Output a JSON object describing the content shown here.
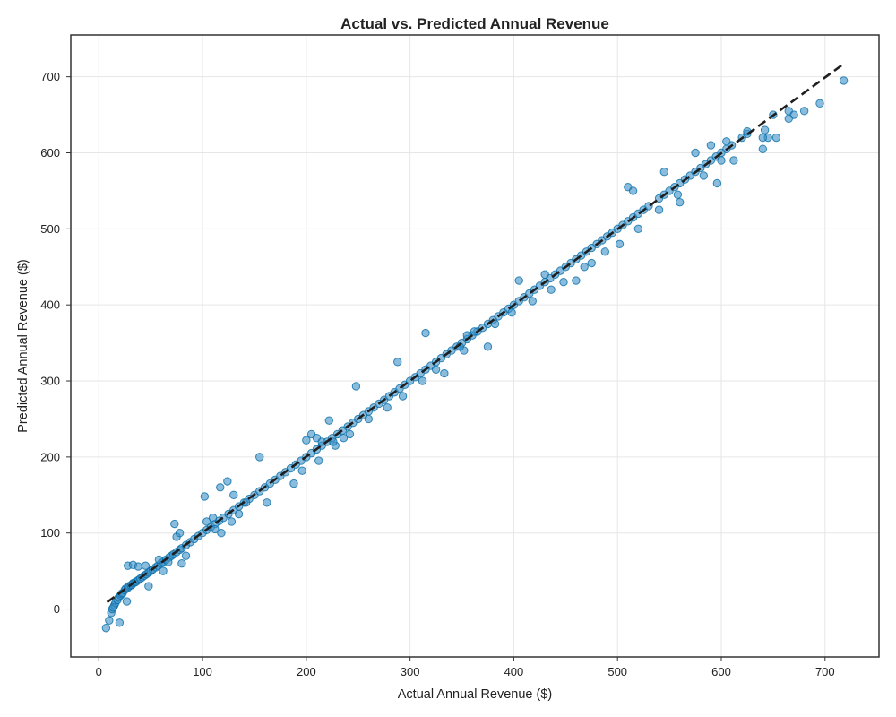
{
  "chart_data": {
    "type": "scatter",
    "title": "Actual vs. Predicted Annual Revenue",
    "xlabel": "Actual Annual Revenue ($)",
    "ylabel": "Predicted Annual Revenue ($)",
    "xlim": [
      -27,
      752
    ],
    "ylim": [
      -63,
      755
    ],
    "x_ticks": [
      0,
      100,
      200,
      300,
      400,
      500,
      600,
      700
    ],
    "y_ticks": [
      0,
      100,
      200,
      300,
      400,
      500,
      600,
      700
    ],
    "grid": true,
    "colors": {
      "points_fill": "#3a8fc7",
      "points_edge": "#0a6ea8",
      "reference_line": "#1f1f1f"
    },
    "reference_line": {
      "style": "dashed",
      "x": [
        8,
        717
      ],
      "y": [
        9,
        716
      ]
    },
    "points": {
      "x": [
        7,
        10,
        12,
        13,
        15,
        16,
        18,
        19,
        21,
        22,
        23,
        25,
        26,
        28,
        29,
        31,
        32,
        33,
        35,
        36,
        38,
        40,
        42,
        44,
        46,
        48,
        50,
        52,
        55,
        57,
        60,
        62,
        65,
        68,
        70,
        72,
        75,
        78,
        80,
        84,
        88,
        92,
        96,
        100,
        104,
        108,
        112,
        116,
        120,
        125,
        130,
        135,
        140,
        145,
        150,
        155,
        160,
        165,
        170,
        175,
        180,
        185,
        190,
        195,
        200,
        205,
        210,
        215,
        220,
        225,
        230,
        235,
        240,
        245,
        250,
        255,
        260,
        265,
        270,
        275,
        280,
        285,
        290,
        295,
        300,
        305,
        310,
        315,
        320,
        325,
        330,
        335,
        340,
        345,
        350,
        355,
        360,
        365,
        370,
        375,
        380,
        385,
        390,
        395,
        400,
        405,
        410,
        415,
        420,
        425,
        430,
        435,
        440,
        445,
        450,
        455,
        460,
        465,
        470,
        475,
        480,
        485,
        490,
        495,
        500,
        505,
        510,
        515,
        520,
        525,
        530,
        540,
        545,
        550,
        555,
        560,
        565,
        570,
        575,
        580,
        585,
        590,
        595,
        600,
        605,
        610,
        620,
        625,
        640,
        645,
        650,
        665,
        670,
        680,
        695,
        718,
        28,
        33,
        38,
        45,
        62,
        73,
        75,
        80,
        84,
        102,
        104,
        110,
        112,
        117,
        124,
        130,
        142,
        155,
        200,
        205,
        210,
        215,
        222,
        228,
        236,
        248,
        288,
        315,
        325,
        352,
        355,
        375,
        405,
        430,
        460,
        475,
        510,
        515,
        545,
        560,
        575,
        590,
        600,
        605,
        625,
        640,
        653,
        665,
        14,
        20,
        27,
        48,
        58,
        67,
        78,
        118,
        128,
        135,
        162,
        188,
        196,
        212,
        226,
        242,
        260,
        278,
        293,
        312,
        333,
        348,
        362,
        382,
        398,
        418,
        436,
        448,
        468,
        488,
        502,
        520,
        540,
        558,
        583,
        596,
        612,
        642
      ],
      "y": [
        -25,
        -15,
        -5,
        0,
        5,
        8,
        12,
        15,
        18,
        20,
        21,
        25,
        27,
        28,
        30,
        31,
        32,
        34,
        35,
        36,
        38,
        40,
        42,
        44,
        46,
        48,
        50,
        52,
        55,
        57,
        60,
        62,
        65,
        68,
        70,
        72,
        75,
        78,
        80,
        84,
        88,
        92,
        96,
        100,
        104,
        108,
        112,
        116,
        120,
        125,
        130,
        135,
        140,
        145,
        150,
        155,
        160,
        165,
        170,
        175,
        180,
        185,
        190,
        195,
        200,
        205,
        210,
        215,
        220,
        225,
        230,
        235,
        240,
        245,
        250,
        255,
        260,
        265,
        270,
        275,
        280,
        285,
        290,
        295,
        300,
        305,
        310,
        315,
        320,
        325,
        330,
        335,
        340,
        345,
        350,
        355,
        360,
        365,
        370,
        375,
        380,
        385,
        390,
        395,
        400,
        405,
        410,
        415,
        420,
        425,
        430,
        435,
        440,
        445,
        450,
        455,
        460,
        465,
        470,
        475,
        480,
        485,
        490,
        495,
        500,
        505,
        510,
        515,
        520,
        525,
        530,
        540,
        545,
        550,
        555,
        560,
        565,
        570,
        575,
        580,
        585,
        590,
        595,
        600,
        605,
        610,
        620,
        625,
        605,
        620,
        650,
        655,
        650,
        655,
        665,
        695,
        57,
        58,
        56,
        57,
        50,
        112,
        95,
        60,
        70,
        148,
        115,
        120,
        105,
        160,
        168,
        150,
        140,
        200,
        222,
        230,
        225,
        220,
        248,
        215,
        225,
        293,
        325,
        363,
        315,
        340,
        360,
        345,
        432,
        440,
        432,
        455,
        555,
        550,
        575,
        535,
        600,
        610,
        590,
        615,
        628,
        620,
        620,
        645,
        2,
        -18,
        10,
        30,
        65,
        62,
        100,
        100,
        115,
        125,
        140,
        165,
        182,
        195,
        220,
        230,
        250,
        265,
        280,
        300,
        310,
        345,
        365,
        375,
        390,
        405,
        420,
        430,
        450,
        470,
        480,
        500,
        525,
        545,
        570,
        560,
        590,
        630
      ]
    }
  }
}
